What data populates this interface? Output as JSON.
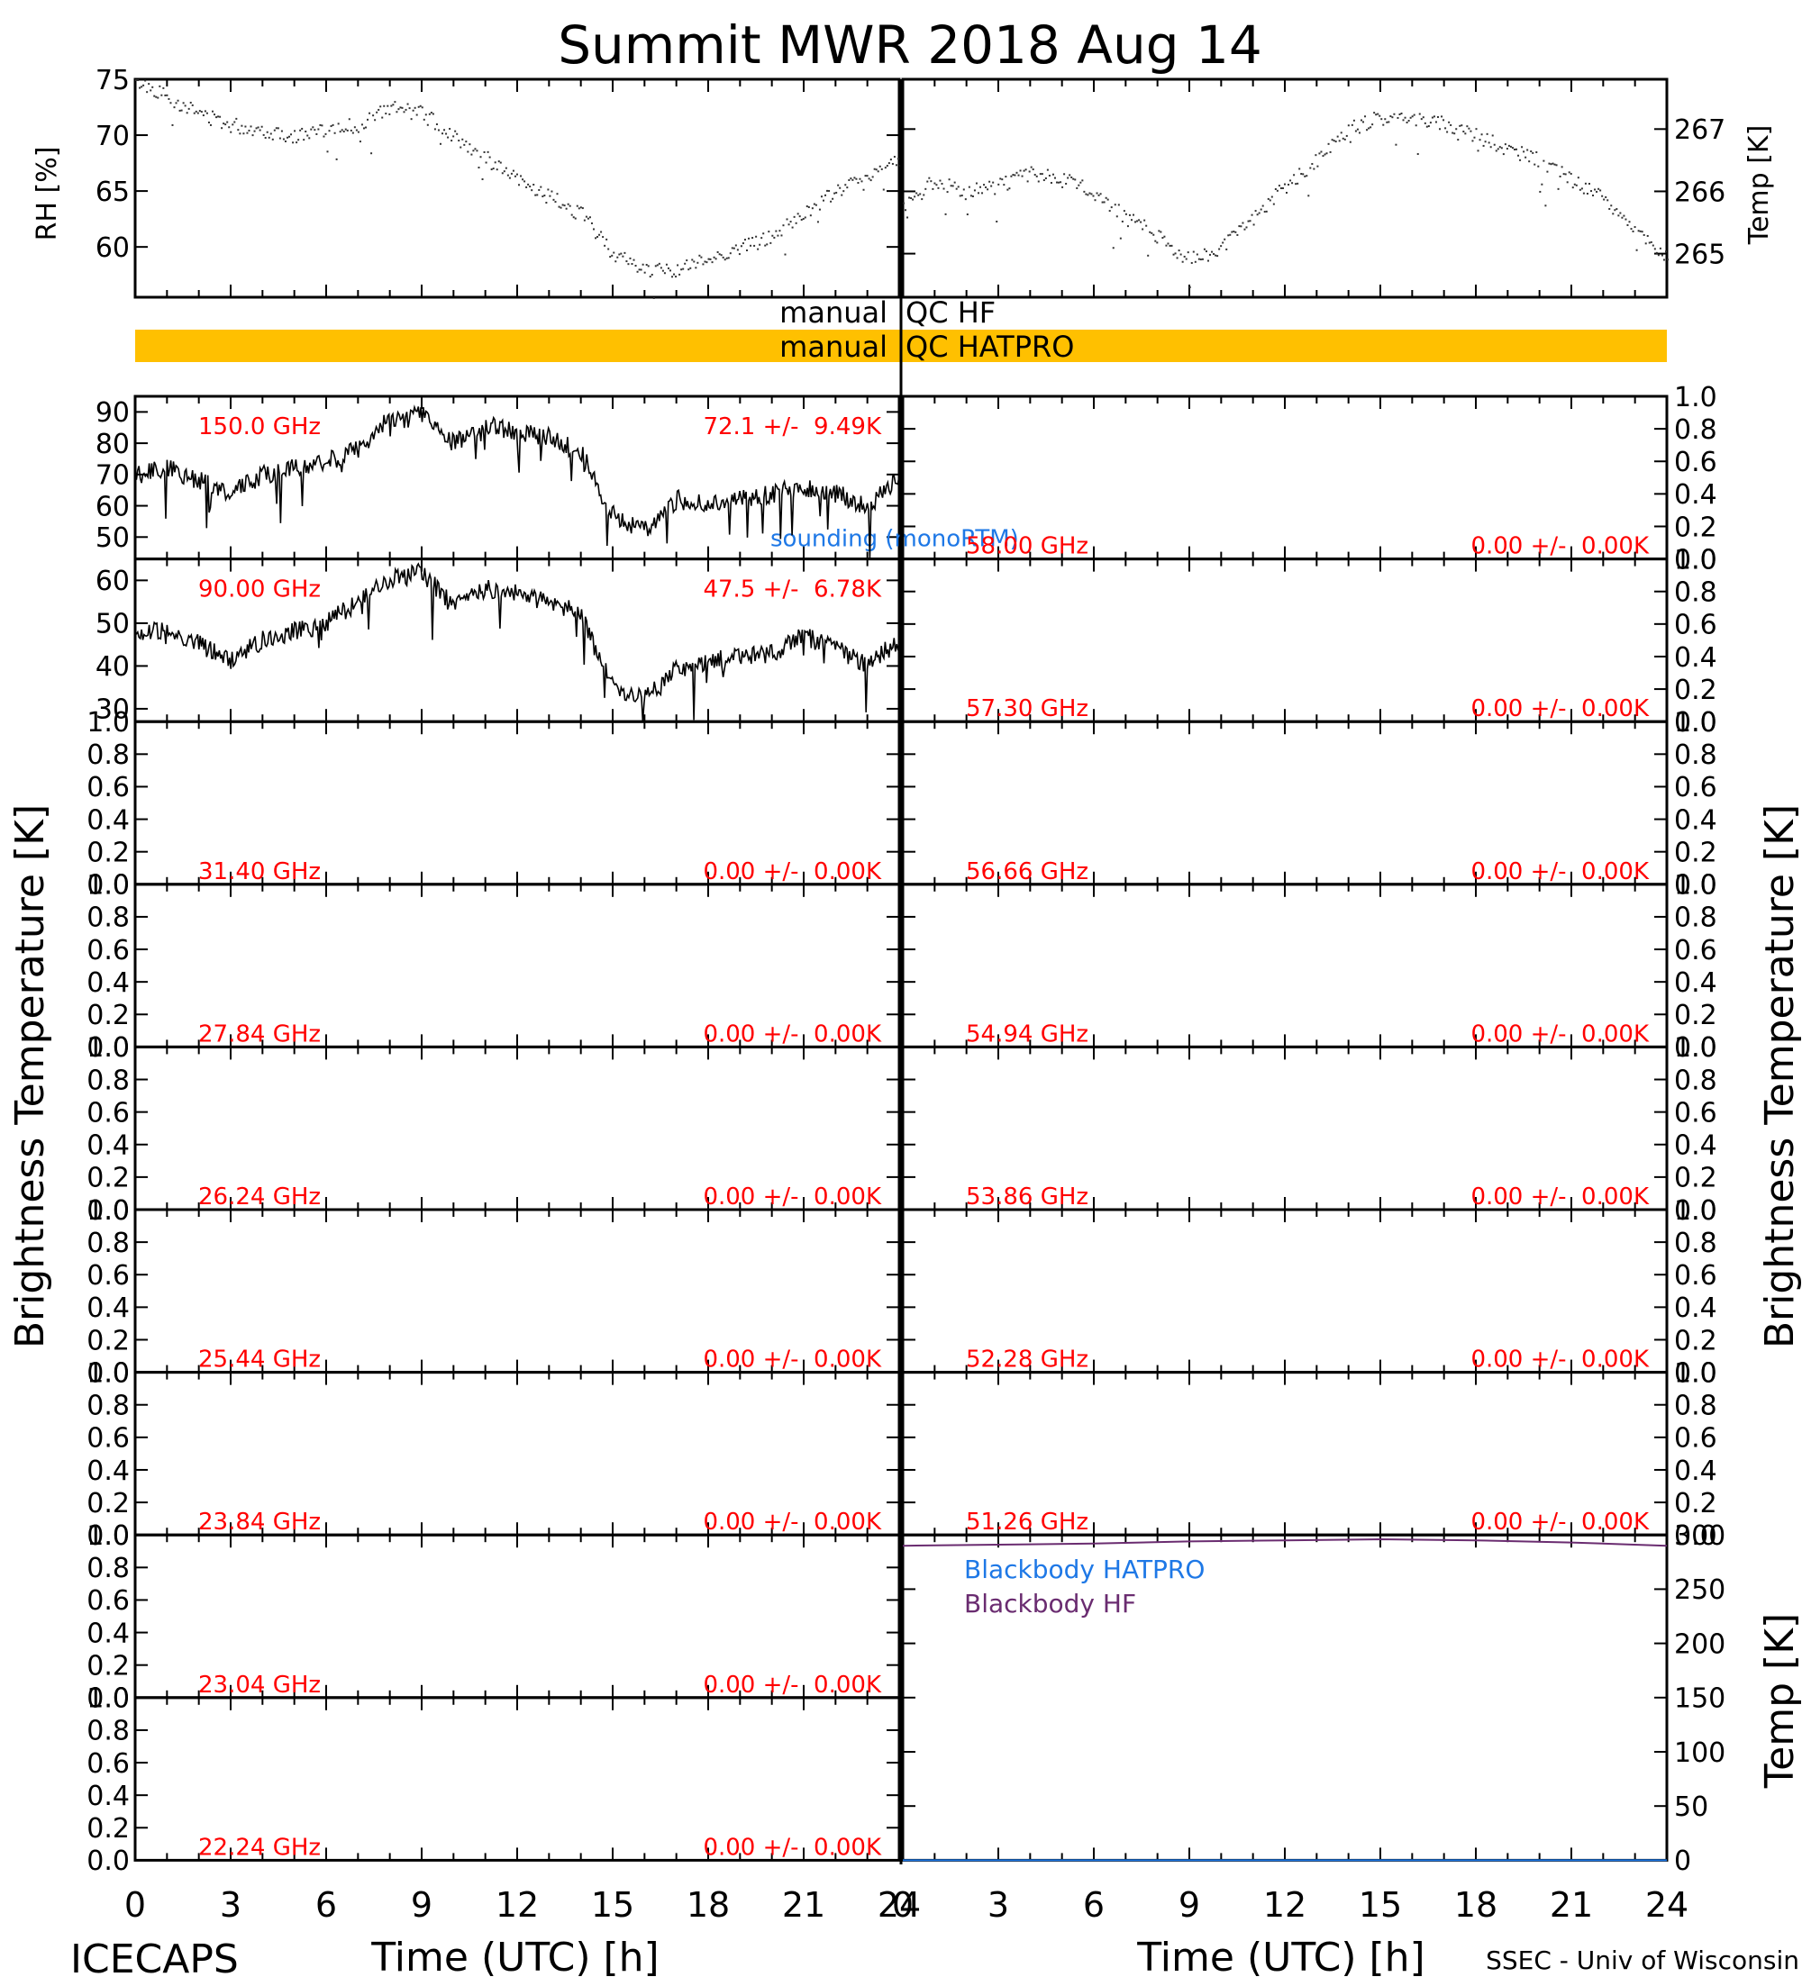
{
  "title": "Summit MWR 2018 Aug 14",
  "footer": {
    "left": "ICECAPS",
    "right": "SSEC - Univ of Wisconsin"
  },
  "colors": {
    "qc_bar": "#FFC000",
    "panel_label": "#FF0000",
    "sounding": "#1E78E6",
    "blackbody_hatpro": "#1E78E6",
    "blackbody_hf": "#6A2C70",
    "axis": "#000000"
  },
  "qc": {
    "hf_label": "manual",
    "hf_value": "QC HF",
    "hatpro_label": "manual",
    "hatpro_value": "QC HATPRO"
  },
  "axes": {
    "x_label": "Time (UTC) [h]",
    "x_ticks": [
      "0",
      "3",
      "6",
      "9",
      "12",
      "15",
      "18",
      "21",
      "24"
    ],
    "left_ylabel": "Brightness Temperature [K]",
    "right_ylabel": "Brightness Temperature [K]",
    "rh_ylabel": "RH [%]",
    "temp_ylabel": "Temp [K]",
    "bb_ylabel": "Temp [K]"
  },
  "chart_data": [
    {
      "type": "scatter",
      "id": "rh",
      "ylabel": "RH [%]",
      "xlim": [
        0,
        24
      ],
      "ylim": [
        55.5,
        75
      ],
      "yticks": [
        60,
        65,
        70,
        75
      ],
      "x": [
        0,
        1,
        2,
        3,
        4,
        5,
        6,
        7,
        8,
        9,
        10,
        11,
        12,
        13,
        14,
        15,
        16,
        17,
        18,
        19,
        20,
        21,
        22,
        23,
        24
      ],
      "y": [
        75,
        73.5,
        72,
        71,
        70.5,
        70,
        70.5,
        71,
        72.5,
        72,
        70,
        68,
        66,
        64.5,
        63,
        59.5,
        58,
        58,
        59,
        60,
        61,
        63,
        65,
        66.5,
        68
      ]
    },
    {
      "type": "scatter",
      "id": "temp",
      "ylabel": "Temp [K]",
      "xlim": [
        0,
        24
      ],
      "ylim": [
        264.3,
        267.8
      ],
      "yticks": [
        265,
        266,
        267
      ],
      "x": [
        0,
        1,
        2,
        3,
        4,
        5,
        6,
        7,
        8,
        9,
        10,
        11,
        12,
        13,
        14,
        15,
        16,
        17,
        18,
        19,
        20,
        21,
        22,
        23,
        24
      ],
      "y": [
        265.8,
        266.2,
        266.0,
        266.1,
        266.3,
        266.2,
        266.0,
        265.6,
        265.3,
        264.9,
        265.1,
        265.6,
        266.1,
        266.5,
        267.0,
        267.2,
        267.2,
        267.1,
        266.9,
        266.7,
        266.5,
        266.2,
        265.9,
        265.4,
        264.9
      ]
    },
    {
      "type": "line",
      "id": "ch-150",
      "frequency": "150.0 GHz",
      "stats": "72.1 +/-  9.49K",
      "note": "sounding (monoRTM)",
      "ylim": [
        43,
        95
      ],
      "yticks": [
        50,
        60,
        70,
        80,
        90
      ],
      "x": [
        0,
        1,
        2,
        3,
        4,
        5,
        6,
        7,
        8,
        9,
        10,
        11,
        12,
        13,
        14,
        15,
        16,
        17,
        18,
        19,
        20,
        21,
        22,
        23,
        24
      ],
      "y": [
        70,
        72,
        68,
        64,
        70,
        72,
        74,
        78,
        88,
        90,
        80,
        86,
        84,
        82,
        77,
        57,
        52,
        62,
        60,
        62,
        64,
        66,
        64,
        60,
        68
      ]
    },
    {
      "type": "line",
      "id": "ch-90",
      "frequency": "90.00 GHz",
      "stats": "47.5 +/-  6.78K",
      "ylim": [
        27,
        65
      ],
      "yticks": [
        30,
        40,
        50,
        60
      ],
      "x": [
        0,
        1,
        2,
        3,
        4,
        5,
        6,
        7,
        8,
        9,
        10,
        11,
        12,
        13,
        14,
        15,
        16,
        17,
        18,
        19,
        20,
        21,
        22,
        23,
        24
      ],
      "y": [
        48,
        48,
        45,
        41,
        46,
        48,
        50,
        55,
        60,
        62,
        54,
        58,
        57,
        55,
        52,
        35,
        32,
        39,
        41,
        42,
        43,
        47,
        44,
        40,
        46
      ]
    },
    {
      "type": "line",
      "id": "ch-31.40",
      "frequency": "31.40 GHz",
      "stats": "0.00 +/-  0.00K",
      "ylim": [
        0,
        1
      ],
      "yticks": [
        "0.0",
        "0.2",
        "0.4",
        "0.6",
        "0.8",
        "1.0"
      ]
    },
    {
      "type": "line",
      "id": "ch-27.84",
      "frequency": "27.84 GHz",
      "stats": "0.00 +/-  0.00K",
      "ylim": [
        0,
        1
      ],
      "yticks": [
        "0.0",
        "0.2",
        "0.4",
        "0.6",
        "0.8",
        "1.0"
      ]
    },
    {
      "type": "line",
      "id": "ch-26.24",
      "frequency": "26.24 GHz",
      "stats": "0.00 +/-  0.00K",
      "ylim": [
        0,
        1
      ],
      "yticks": [
        "0.0",
        "0.2",
        "0.4",
        "0.6",
        "0.8",
        "1.0"
      ]
    },
    {
      "type": "line",
      "id": "ch-25.44",
      "frequency": "25.44 GHz",
      "stats": "0.00 +/-  0.00K",
      "ylim": [
        0,
        1
      ],
      "yticks": [
        "0.0",
        "0.2",
        "0.4",
        "0.6",
        "0.8",
        "1.0"
      ]
    },
    {
      "type": "line",
      "id": "ch-23.84",
      "frequency": "23.84 GHz",
      "stats": "0.00 +/-  0.00K",
      "ylim": [
        0,
        1
      ],
      "yticks": [
        "0.0",
        "0.2",
        "0.4",
        "0.6",
        "0.8",
        "1.0"
      ]
    },
    {
      "type": "line",
      "id": "ch-23.04",
      "frequency": "23.04 GHz",
      "stats": "0.00 +/-  0.00K",
      "ylim": [
        0,
        1
      ],
      "yticks": [
        "0.0",
        "0.2",
        "0.4",
        "0.6",
        "0.8",
        "1.0"
      ]
    },
    {
      "type": "line",
      "id": "ch-22.24",
      "frequency": "22.24 GHz",
      "stats": "0.00 +/-  0.00K",
      "ylim": [
        0,
        1
      ],
      "yticks": [
        "0.0",
        "0.2",
        "0.4",
        "0.6",
        "0.8",
        "1.0"
      ]
    },
    {
      "type": "line",
      "id": "ch-58.00",
      "frequency": "58.00 GHz",
      "stats": "0.00 +/-  0.00K",
      "ylim": [
        0,
        1
      ],
      "yticks": [
        "0.0",
        "0.2",
        "0.4",
        "0.6",
        "0.8",
        "1.0"
      ]
    },
    {
      "type": "line",
      "id": "ch-57.30",
      "frequency": "57.30 GHz",
      "stats": "0.00 +/-  0.00K",
      "ylim": [
        0,
        1
      ],
      "yticks": [
        "0.0",
        "0.2",
        "0.4",
        "0.6",
        "0.8",
        "1.0"
      ]
    },
    {
      "type": "line",
      "id": "ch-56.66",
      "frequency": "56.66 GHz",
      "stats": "0.00 +/-  0.00K",
      "ylim": [
        0,
        1
      ],
      "yticks": [
        "0.0",
        "0.2",
        "0.4",
        "0.6",
        "0.8",
        "1.0"
      ]
    },
    {
      "type": "line",
      "id": "ch-54.94",
      "frequency": "54.94 GHz",
      "stats": "0.00 +/-  0.00K",
      "ylim": [
        0,
        1
      ],
      "yticks": [
        "0.0",
        "0.2",
        "0.4",
        "0.6",
        "0.8",
        "1.0"
      ]
    },
    {
      "type": "line",
      "id": "ch-53.86",
      "frequency": "53.86 GHz",
      "stats": "0.00 +/-  0.00K",
      "ylim": [
        0,
        1
      ],
      "yticks": [
        "0.0",
        "0.2",
        "0.4",
        "0.6",
        "0.8",
        "1.0"
      ]
    },
    {
      "type": "line",
      "id": "ch-52.28",
      "frequency": "52.28 GHz",
      "stats": "0.00 +/-  0.00K",
      "ylim": [
        0,
        1
      ],
      "yticks": [
        "0.0",
        "0.2",
        "0.4",
        "0.6",
        "0.8",
        "1.0"
      ]
    },
    {
      "type": "line",
      "id": "ch-51.26",
      "frequency": "51.26 GHz",
      "stats": "0.00 +/-  0.00K",
      "ylim": [
        0,
        1
      ],
      "yticks": [
        "0.0",
        "0.2",
        "0.4",
        "0.6",
        "0.8",
        "1.0"
      ]
    },
    {
      "type": "line",
      "id": "blackbody",
      "ylabel": "Temp [K]",
      "ylim": [
        0,
        300
      ],
      "yticks": [
        0,
        50,
        100,
        150,
        200,
        250,
        300
      ],
      "series": [
        {
          "name": "Blackbody HATPRO",
          "x": [
            0,
            24
          ],
          "y": [
            0,
            0
          ]
        },
        {
          "name": "Blackbody HF",
          "x": [
            0,
            3,
            6,
            9,
            12,
            15,
            18,
            21,
            24
          ],
          "y": [
            290,
            291,
            292,
            294,
            295,
            296,
            295,
            293,
            290
          ]
        }
      ]
    }
  ]
}
